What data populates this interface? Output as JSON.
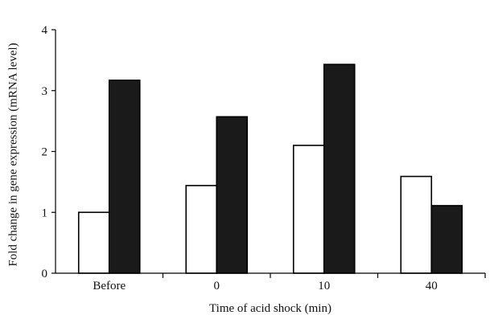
{
  "chart_data": {
    "type": "bar",
    "categories": [
      "Before",
      "0",
      "10",
      "40"
    ],
    "series": [
      {
        "values": [
          1.0,
          1.44,
          2.1,
          1.59
        ],
        "fill": "#ffffff",
        "stroke": "#000000"
      },
      {
        "values": [
          3.17,
          2.57,
          3.43,
          1.11
        ],
        "fill": "#1a1a1a",
        "stroke": "#000000"
      }
    ],
    "xlabel": "Time of acid shock (min)",
    "ylabel": "Fold change in gene expression (mRNA level)",
    "ylim": [
      0,
      4
    ],
    "yticks": [
      0,
      1,
      2,
      3,
      4
    ],
    "grid": false,
    "legend": "none"
  }
}
